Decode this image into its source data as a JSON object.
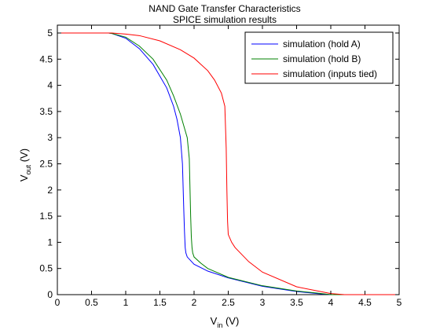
{
  "figure": {
    "background": "#ffffff"
  },
  "chart_data": {
    "type": "line",
    "title": "NAND Gate Transfer Characteristics",
    "subtitle": "SPICE simulation results",
    "xlabel_main": "V",
    "xlabel_sub": "in",
    "xlabel_unit": " (V)",
    "ylabel_main": "V",
    "ylabel_sub": "out",
    "ylabel_unit": " (V)",
    "xlim": [
      0,
      5
    ],
    "ylim": [
      0,
      5.15
    ],
    "xticks": [
      0,
      0.5,
      1,
      1.5,
      2,
      2.5,
      3,
      3.5,
      4,
      4.5,
      5
    ],
    "xtick_labels": [
      "0",
      "0.5",
      "1",
      "1.5",
      "2",
      "2.5",
      "3",
      "3.5",
      "4",
      "4.5",
      "5"
    ],
    "yticks": [
      0,
      0.5,
      1,
      1.5,
      2,
      2.5,
      3,
      3.5,
      4,
      4.5,
      5
    ],
    "ytick_labels": [
      "0",
      "0.5",
      "1",
      "1.5",
      "2",
      "2.5",
      "3",
      "3.5",
      "4",
      "4.5",
      "5"
    ],
    "grid": false,
    "legend_position": "top-right",
    "series": [
      {
        "name": "simulation (hold A)",
        "color": "#0000ff",
        "x": [
          0,
          0.75,
          0.8,
          1.0,
          1.2,
          1.4,
          1.6,
          1.7,
          1.75,
          1.8,
          1.83,
          1.85,
          1.86,
          1.87,
          1.88,
          1.9,
          2.0,
          2.2,
          2.5,
          3.0,
          3.5,
          3.8,
          4.0,
          5.0
        ],
        "y": [
          5,
          5,
          4.99,
          4.9,
          4.7,
          4.4,
          3.95,
          3.6,
          3.35,
          3.0,
          2.5,
          1.6,
          1.2,
          0.9,
          0.8,
          0.72,
          0.58,
          0.45,
          0.32,
          0.16,
          0.06,
          0.02,
          0.0,
          0.0
        ]
      },
      {
        "name": "simulation (hold B)",
        "color": "#008000",
        "x": [
          0,
          0.75,
          0.8,
          1.0,
          1.2,
          1.4,
          1.6,
          1.7,
          1.8,
          1.9,
          1.93,
          1.95,
          1.96,
          1.97,
          1.98,
          2.0,
          2.1,
          2.2,
          2.5,
          3.0,
          3.5,
          3.8,
          4.0,
          5.0
        ],
        "y": [
          5,
          5,
          4.99,
          4.92,
          4.75,
          4.5,
          4.1,
          3.8,
          3.45,
          3.0,
          2.6,
          1.5,
          1.1,
          0.9,
          0.8,
          0.72,
          0.6,
          0.5,
          0.33,
          0.17,
          0.07,
          0.03,
          0.0,
          0.0
        ]
      },
      {
        "name": "simulation (inputs tied)",
        "color": "#ff0000",
        "x": [
          0,
          0.8,
          1.0,
          1.2,
          1.5,
          1.8,
          2.0,
          2.2,
          2.3,
          2.4,
          2.45,
          2.47,
          2.48,
          2.49,
          2.5,
          2.55,
          2.6,
          2.8,
          3.0,
          3.5,
          4.0,
          4.2,
          5.0
        ],
        "y": [
          5,
          5,
          4.98,
          4.95,
          4.85,
          4.68,
          4.52,
          4.28,
          4.1,
          3.85,
          3.6,
          2.8,
          2.0,
          1.4,
          1.15,
          1.0,
          0.9,
          0.63,
          0.43,
          0.15,
          0.02,
          0.0,
          0.0
        ]
      }
    ]
  }
}
